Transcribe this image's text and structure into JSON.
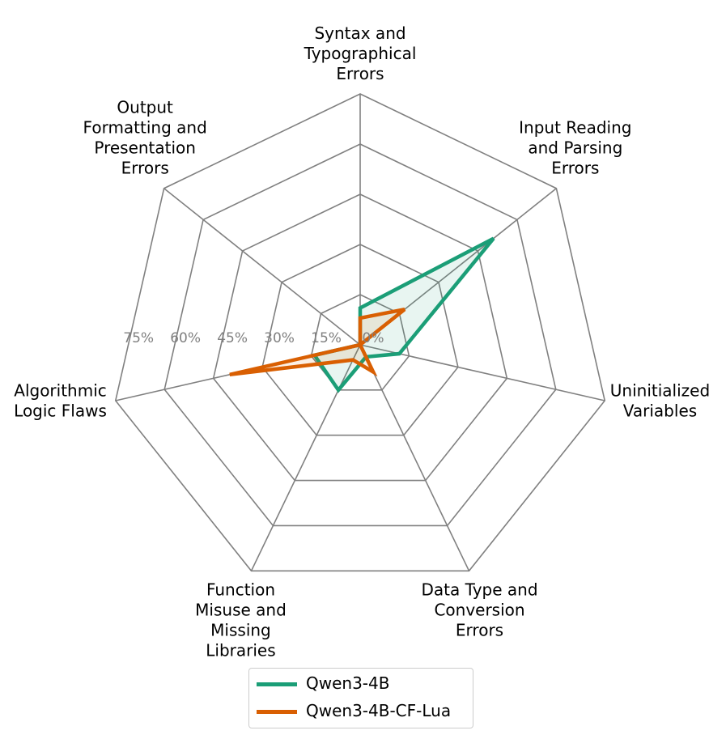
{
  "chart_data": {
    "type": "radar",
    "categories": [
      "Syntax and\nTypographical\nErrors",
      "Input Reading\nand Parsing\nErrors",
      "Uninitialized\nVariables",
      "Data Type and\nConversion\nErrors",
      "Function\nMisuse and\nMissing\nLibraries",
      "Algorithmic\nLogic Flaws",
      "Output\nFormatting and\nPresentation\nErrors"
    ],
    "rlim": [
      0,
      75
    ],
    "rticks": [
      0,
      15,
      30,
      45,
      60,
      75
    ],
    "rtick_labels": [
      "0%",
      "15%",
      "30%",
      "45%",
      "60%",
      "75%"
    ],
    "series": [
      {
        "name": "Qwen3-4B",
        "color": "#1b9e77",
        "values": [
          11,
          51,
          12,
          4,
          15,
          14,
          0
        ]
      },
      {
        "name": "Qwen3-4B-CF-Lua",
        "color": "#d95f02",
        "values": [
          8,
          17,
          0,
          9,
          5,
          40,
          0
        ]
      }
    ]
  },
  "legend": {
    "items": [
      {
        "label": "Qwen3-4B",
        "color": "#1b9e77"
      },
      {
        "label": "Qwen3-4B-CF-Lua",
        "color": "#d95f02"
      }
    ]
  }
}
